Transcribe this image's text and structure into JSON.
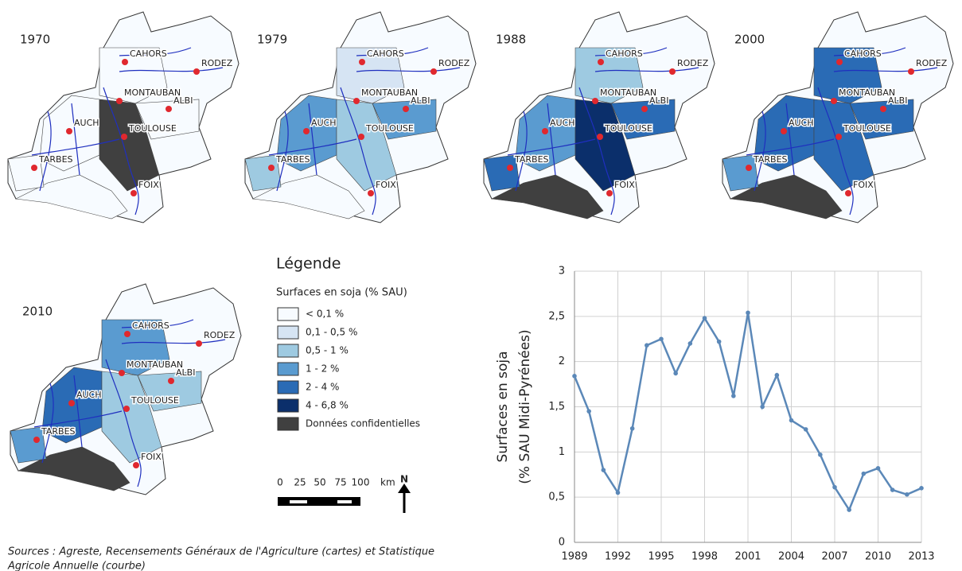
{
  "maps": [
    {
      "year": "1970"
    },
    {
      "year": "1979"
    },
    {
      "year": "1988"
    },
    {
      "year": "2000"
    },
    {
      "year": "2010"
    }
  ],
  "cities": [
    "CAHORS",
    "RODEZ",
    "MONTAUBAN",
    "ALBI",
    "AUCH",
    "TOULOUSE",
    "TARBES",
    "FOIX"
  ],
  "legend": {
    "title": "Légende",
    "subtitle": "Surfaces en soja (% SAU)",
    "items": [
      {
        "label": "< 0,1 %",
        "color": "#f7fbff"
      },
      {
        "label": "0,1 - 0,5 %",
        "color": "#d6e4f3"
      },
      {
        "label": "0,5 - 1 %",
        "color": "#9ecae1"
      },
      {
        "label": "1 - 2 %",
        "color": "#5a9bd0"
      },
      {
        "label": "2 - 4 %",
        "color": "#2a6bb5"
      },
      {
        "label": "4 - 6,8 %",
        "color": "#0b2f6b"
      },
      {
        "label": "Données confidentielles",
        "color": "#404040"
      }
    ]
  },
  "scale": {
    "ticks": [
      "0",
      "25",
      "50",
      "75",
      "100"
    ],
    "unit": "km",
    "north": "N"
  },
  "sources": [
    "Sources : Agreste, Recensements Généraux de l'Agriculture (cartes) et Statistique",
    "Agricole Annuelle (courbe)"
  ],
  "chart_data": {
    "type": "line",
    "y_label": [
      "Surfaces en soja",
      "(% SAU Midi-Pyrénées)"
    ],
    "x": [
      1989,
      1990,
      1991,
      1992,
      1993,
      1994,
      1995,
      1996,
      1997,
      1998,
      1999,
      2000,
      2001,
      2002,
      2003,
      2004,
      2005,
      2006,
      2007,
      2008,
      2009,
      2010,
      2011,
      2012,
      2013
    ],
    "series": [
      {
        "color": "#5b88b8",
        "values": [
          1.84,
          1.45,
          0.8,
          0.55,
          1.26,
          2.18,
          2.25,
          1.87,
          2.2,
          2.48,
          2.22,
          1.62,
          2.54,
          1.5,
          1.85,
          1.35,
          1.25,
          0.97,
          0.61,
          0.36,
          0.76,
          0.82,
          0.58,
          0.53,
          0.6
        ]
      }
    ],
    "xlim": [
      1989,
      2013
    ],
    "xticks": [
      1989,
      1992,
      1995,
      1998,
      2001,
      2004,
      2007,
      2010,
      2013
    ],
    "ylim": [
      0,
      3
    ],
    "yticks": [
      0,
      {
        "value": 0.5,
        "label": "0,5"
      },
      1,
      {
        "value": 1.5,
        "label": "1,5"
      },
      2,
      {
        "value": 2.5,
        "label": "2,5"
      },
      3
    ],
    "grid": true
  }
}
